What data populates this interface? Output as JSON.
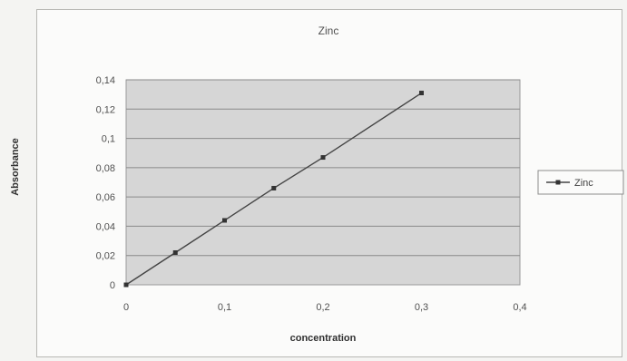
{
  "chart_data": {
    "type": "line",
    "title": "Zinc",
    "xlabel": "concentration",
    "ylabel": "Absorbance",
    "x": [
      0,
      0.05,
      0.1,
      0.15,
      0.2,
      0.3
    ],
    "series": [
      {
        "name": "Zinc",
        "values": [
          0,
          0.022,
          0.044,
          0.066,
          0.087,
          0.131
        ]
      }
    ],
    "xlim": [
      0,
      0.4
    ],
    "ylim": [
      0,
      0.14
    ],
    "xticks": [
      "0",
      "0,1",
      "0,2",
      "0,3",
      "0,4"
    ],
    "yticks": [
      "0",
      "0,02",
      "0,04",
      "0,06",
      "0,08",
      "0,1",
      "0,12",
      "0,14"
    ],
    "grid": true,
    "legend": "right",
    "colors": {
      "plot_background": "#d6d6d6",
      "gridline": "#8a8a8a",
      "line": "#444444",
      "marker": "#333333"
    }
  }
}
